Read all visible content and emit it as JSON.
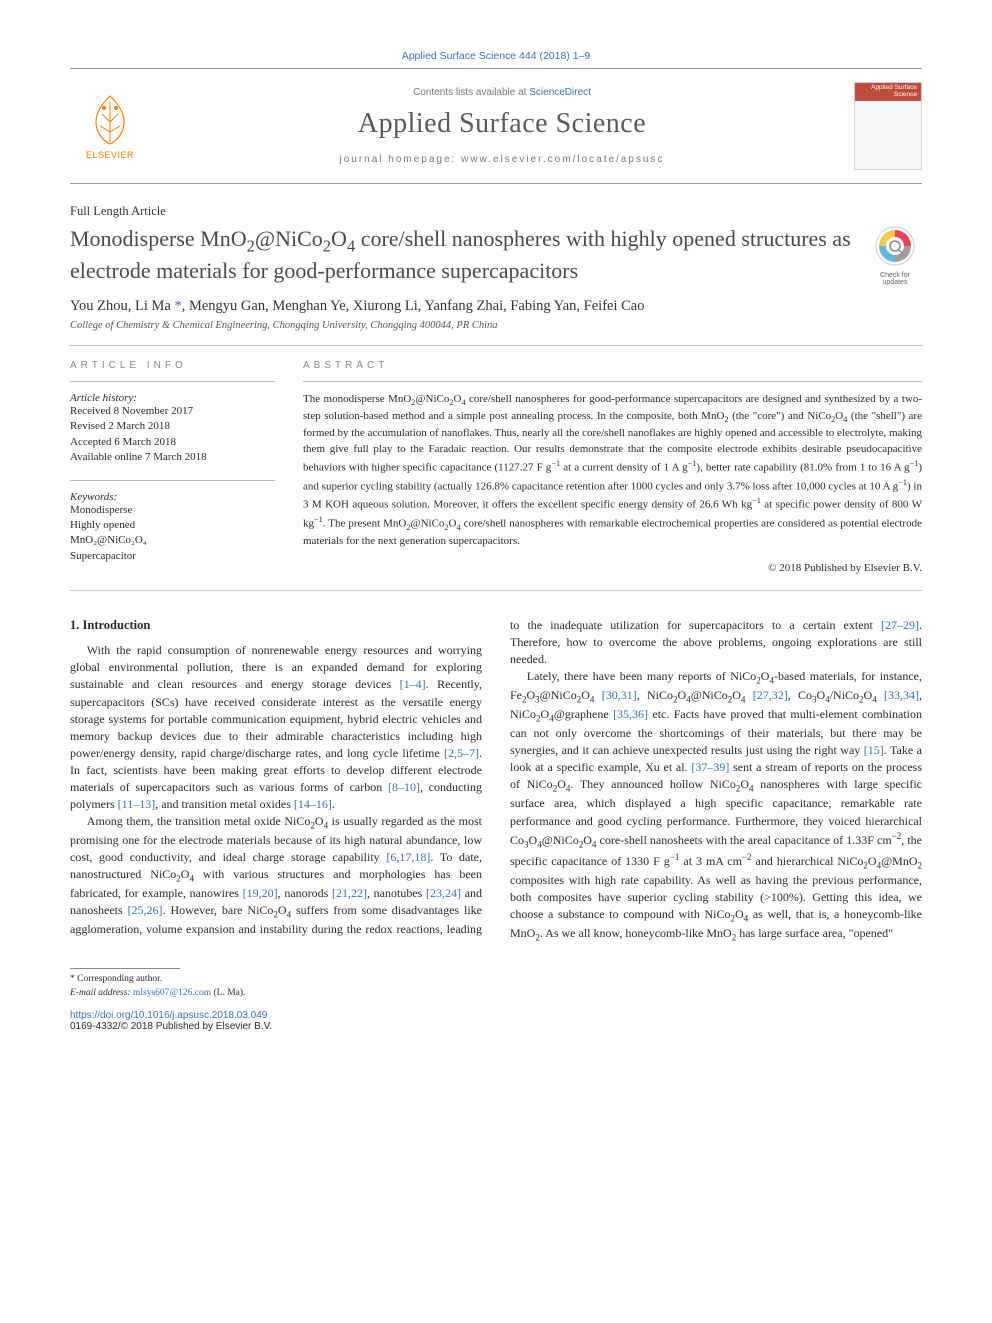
{
  "top_reference": "Applied Surface Science 444 (2018) 1–9",
  "masthead": {
    "contents_prefix": "Contents lists available at ",
    "contents_link": "ScienceDirect",
    "journal_name": "Applied Surface Science",
    "homepage_label": "journal homepage: www.elsevier.com/locate/apsusc",
    "elsevier_text": "ELSEVIER",
    "cover_title": "Applied Surface Science"
  },
  "article_type": "Full Length Article",
  "title_html": "Monodisperse MnO<sub>2</sub>@NiCo<sub>2</sub>O<sub>4</sub> core/shell nanospheres with highly opened structures as electrode materials for good-performance supercapacitors",
  "check_updates": "Check for updates",
  "authors_html": "You Zhou, Li Ma <span class=\"corr-star\">*</span>, Mengyu Gan, Menghan Ye, Xiurong Li, Yanfang Zhai, Fabing Yan, Feifei Cao",
  "affiliation": "College of Chemistry & Chemical Engineering, Chongqing University, Chongqing 400044, PR China",
  "sections": {
    "info_head": "ARTICLE INFO",
    "abstract_head": "ABSTRACT"
  },
  "history": {
    "label": "Article history:",
    "received": "Received 8 November 2017",
    "revised": "Revised 2 March 2018",
    "accepted": "Accepted 6 March 2018",
    "online": "Available online 7 March 2018"
  },
  "keywords": {
    "label": "Keywords:",
    "items": [
      "Monodisperse",
      "Highly opened",
      "MnO₂@NiCo₂O₄",
      "Supercapacitor"
    ]
  },
  "abstract_html": "The monodisperse MnO<sub>2</sub>@NiCo<sub>2</sub>O<sub>4</sub> core/shell nanospheres for good-performance supercapacitors are designed and synthesized by a two-step solution-based method and a simple post annealing process. In the composite, both MnO<sub>2</sub> (the \"core\") and NiCo<sub>2</sub>O<sub>4</sub> (the \"shell\") are formed by the accumulation of nanoflakes. Thus, nearly all the core/shell nanoflakes are highly opened and accessible to electrolyte, making them give full play to the Faradaic reaction. Our results demonstrate that the composite electrode exhibits desirable pseudocapacitive behaviors with higher specific capacitance (1127.27 F g<sup>−1</sup> at a current density of 1 A g<sup>−1</sup>), better rate capability (81.0% from 1 to 16 A g<sup>−1</sup>) and superior cycling stability (actually 126.8% capacitance retention after 1000 cycles and only 3.7% loss after 10,000 cycles at 10 A g<sup>−1</sup>) in 3 M KOH aqueous solution. Moreover, it offers the excellent specific energy density of 26.6 Wh kg<sup>−1</sup> at specific power density of 800 W kg<sup>−1</sup>. The present MnO<sub>2</sub>@NiCo<sub>2</sub>O<sub>4</sub> core/shell nanospheres with remarkable electrochemical properties are considered as potential electrode materials for the next generation supercapacitors.",
  "copyright": "© 2018 Published by Elsevier B.V.",
  "intro_heading": "1. Introduction",
  "intro_p1_html": "With the rapid consumption of nonrenewable energy resources and worrying global environmental pollution, there is an expanded demand for exploring sustainable and clean resources and energy storage devices <span class=\"cite\">[1–4]</span>. Recently, supercapacitors (SCs) have received considerate interest as the versatile energy storage systems for portable communication equipment, hybrid electric vehicles and memory backup devices due to their admirable characteristics including high power/energy density, rapid charge/discharge rates, and long cycle lifetime <span class=\"cite\">[2,5–7]</span>. In fact, scientists have been making great efforts to develop different electrode materials of supercapacitors such as various forms of carbon <span class=\"cite\">[8–10]</span>, conducting polymers <span class=\"cite\">[11–13]</span>, and transition metal oxides <span class=\"cite\">[14–16]</span>.",
  "intro_p2_html": "Among them, the transition metal oxide NiCo<sub>2</sub>O<sub>4</sub> is usually regarded as the most promising one for the electrode materials because of its high natural abundance, low cost, good conductivity, and ideal charge storage capability <span class=\"cite\">[6,17,18]</span>. To date, nanostructured NiCo<sub>2</sub>O<sub>4</sub> with various structures and morphologies has been fabricated, for example, nanowires <span class=\"cite\">[19,20]</span>, nanorods <span class=\"cite\">[21,22]</span>, nanotubes <span class=\"cite\">[23,24]</span> and nanosheets <span class=\"cite\">[25,26]</span>. However, bare NiCo<sub>2</sub>O<sub>4</sub> suffers from some disadvantages like agglomeration, volume expansion and instability during the redox reactions, leading to the inadequate utilization for supercapacitors to a certain extent <span class=\"cite\">[27–29]</span>. Therefore, how to overcome the above problems, ongoing explorations are still needed.",
  "intro_p3_html": "Lately, there have been many reports of NiCo<sub>2</sub>O<sub>4</sub>-based materials, for instance, Fe<sub>2</sub>O<sub>3</sub>@NiCo<sub>2</sub>O<sub>4</sub> <span class=\"cite\">[30,31]</span>, NiCo<sub>2</sub>O<sub>4</sub>@NiCo<sub>2</sub>O<sub>4</sub> <span class=\"cite\">[27,32]</span>, Co<sub>3</sub>O<sub>4</sub>/NiCo<sub>2</sub>O<sub>4</sub> <span class=\"cite\">[33,34]</span>, NiCo<sub>2</sub>O<sub>4</sub>@graphene <span class=\"cite\">[35,36]</span> etc. Facts have proved that multi-element combination can not only overcome the shortcomings of their materials, but there may be synergies, and it can achieve unexpected results just using the right way <span class=\"cite\">[15]</span>. Take a look at a specific example, Xu et al. <span class=\"cite\">[37–39]</span> sent a stream of reports on the process of NiCo<sub>2</sub>O<sub>4</sub>. They announced hollow NiCo<sub>2</sub>O<sub>4</sub> nanospheres with large specific surface area, which displayed a high specific capacitance, remarkable rate performance and good cycling performance. Furthermore, they voiced hierarchical Co<sub>3</sub>O<sub>4</sub>@NiCo<sub>2</sub>O<sub>4</sub> core-shell nanosheets with the areal capacitance of 1.33F cm<sup>−2</sup>, the specific capacitance of 1330 F g<sup>−1</sup> at 3 mA cm<sup>−2</sup> and hierarchical NiCo<sub>2</sub>O<sub>4</sub>@MnO<sub>2</sub> composites with high rate capability. As well as having the previous performance, both composites have superior cycling stability (>100%). Getting this idea, we choose a substance to compound with NiCo<sub>2</sub>O<sub>4</sub> as well, that is, a honeycomb-like MnO<sub>2</sub>. As we all know, honeycomb-like MnO<sub>2</sub> has large surface area, \"opened\"",
  "footnotes": {
    "corr": "* Corresponding author.",
    "email_label": "E-mail address: ",
    "email": "mlsys607@126.com",
    "email_suffix": " (L. Ma)."
  },
  "bottom": {
    "doi": "https://doi.org/10.1016/j.apsusc.2018.03.049",
    "issn_line": "0169-4332/© 2018 Published by Elsevier B.V."
  },
  "colors": {
    "link": "#3b6fb6",
    "elsevier_orange": "#ff7a00",
    "cover_red": "#c24a3a",
    "text": "#2a2a2a",
    "rule": "#bbbbbb"
  }
}
